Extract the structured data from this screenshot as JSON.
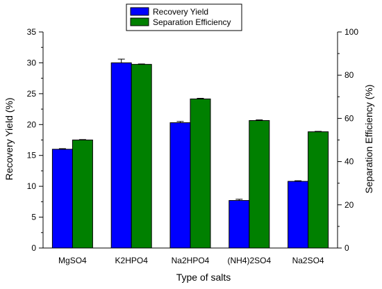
{
  "chart_data": {
    "type": "bar",
    "categories": [
      "MgSO4",
      "K2HPO4",
      "Na2HPO4",
      "(NH4)2SO4",
      "Na2SO4"
    ],
    "series": [
      {
        "name": "Recovery Yield",
        "axis": "left",
        "color": "#0000ff",
        "values": [
          16.0,
          30.0,
          20.3,
          7.7,
          10.8
        ],
        "errors": [
          0.1,
          0.6,
          0.2,
          0.2,
          0.1
        ]
      },
      {
        "name": "Separation Efficiency",
        "axis": "right",
        "color": "#008000",
        "values": [
          50.0,
          85.0,
          69.0,
          59.0,
          53.8
        ],
        "errors": [
          0.2,
          0.2,
          0.3,
          0.3,
          0.2
        ]
      }
    ],
    "xlabel": "Type of salts",
    "ylabel": "Recovery Yield (%)",
    "y2label": "Separation Efficiency (%)",
    "ylim": [
      0,
      35
    ],
    "y2lim": [
      0,
      100
    ],
    "yticks": [
      "0",
      "5",
      "10",
      "15",
      "20",
      "25",
      "30",
      "35"
    ],
    "y2ticks": [
      "0",
      "20",
      "40",
      "60",
      "80",
      "100"
    ],
    "grid": false,
    "legend_position": "top-center"
  }
}
